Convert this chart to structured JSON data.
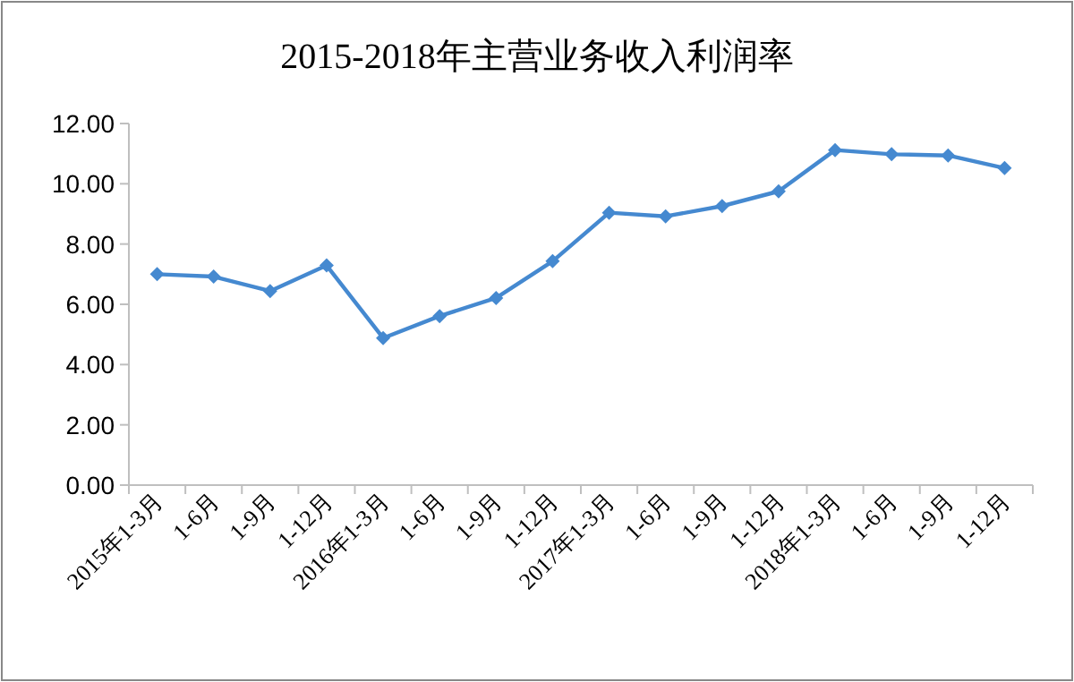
{
  "chart_data": {
    "type": "line",
    "title": "2015-2018年主营业务收入利润率",
    "categories": [
      "2015年1-3月",
      "1-6月",
      "1-9月",
      "1-12月",
      "2016年1-3月",
      "1-6月",
      "1-9月",
      "1-12月",
      "2017年1-3月",
      "1-6月",
      "1-9月",
      "1-12月",
      "2018年1-3月",
      "1-6月",
      "1-9月",
      "1-12月"
    ],
    "series": [
      {
        "color": "#4589d0",
        "values": [
          7.0,
          6.92,
          6.44,
          7.29,
          4.88,
          5.61,
          6.21,
          7.43,
          9.04,
          8.92,
          9.26,
          9.75,
          11.12,
          10.98,
          10.94,
          10.52
        ]
      }
    ],
    "ylim": [
      0,
      12
    ],
    "yticks": [
      {
        "value": 0,
        "label": "0.00"
      },
      {
        "value": 2,
        "label": "2.00"
      },
      {
        "value": 4,
        "label": "4.00"
      },
      {
        "value": 6,
        "label": "6.00"
      },
      {
        "value": 8,
        "label": "8.00"
      },
      {
        "value": 10,
        "label": "10.00"
      },
      {
        "value": 12,
        "label": "12.00"
      }
    ],
    "grid": false,
    "marker": "diamond",
    "line_style": "solid"
  }
}
